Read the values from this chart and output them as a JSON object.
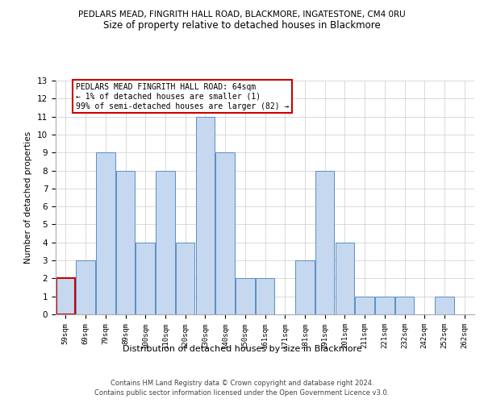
{
  "title1": "PEDLARS MEAD, FINGRITH HALL ROAD, BLACKMORE, INGATESTONE, CM4 0RU",
  "title2": "Size of property relative to detached houses in Blackmore",
  "xlabel": "Distribution of detached houses by size in Blackmore",
  "ylabel": "Number of detached properties",
  "categories": [
    "59sqm",
    "69sqm",
    "79sqm",
    "89sqm",
    "100sqm",
    "110sqm",
    "120sqm",
    "130sqm",
    "140sqm",
    "150sqm",
    "161sqm",
    "171sqm",
    "181sqm",
    "191sqm",
    "201sqm",
    "211sqm",
    "221sqm",
    "232sqm",
    "242sqm",
    "252sqm",
    "262sqm"
  ],
  "values": [
    2,
    3,
    9,
    8,
    4,
    8,
    4,
    11,
    9,
    2,
    2,
    0,
    3,
    8,
    4,
    1,
    1,
    1,
    0,
    1,
    0
  ],
  "bar_color": "#c5d8f0",
  "bar_edge_color": "#5a8fc2",
  "highlight_index": 0,
  "highlight_edge_color": "#cc0000",
  "ylim": [
    0,
    13
  ],
  "yticks": [
    0,
    1,
    2,
    3,
    4,
    5,
    6,
    7,
    8,
    9,
    10,
    11,
    12,
    13
  ],
  "annotation_text": "PEDLARS MEAD FINGRITH HALL ROAD: 64sqm\n← 1% of detached houses are smaller (1)\n99% of semi-detached houses are larger (82) →",
  "annotation_box_color": "#ffffff",
  "annotation_box_edge": "#cc0000",
  "footer1": "Contains HM Land Registry data © Crown copyright and database right 2024.",
  "footer2": "Contains public sector information licensed under the Open Government Licence v3.0.",
  "bg_color": "#ffffff",
  "grid_color": "#cccccc"
}
